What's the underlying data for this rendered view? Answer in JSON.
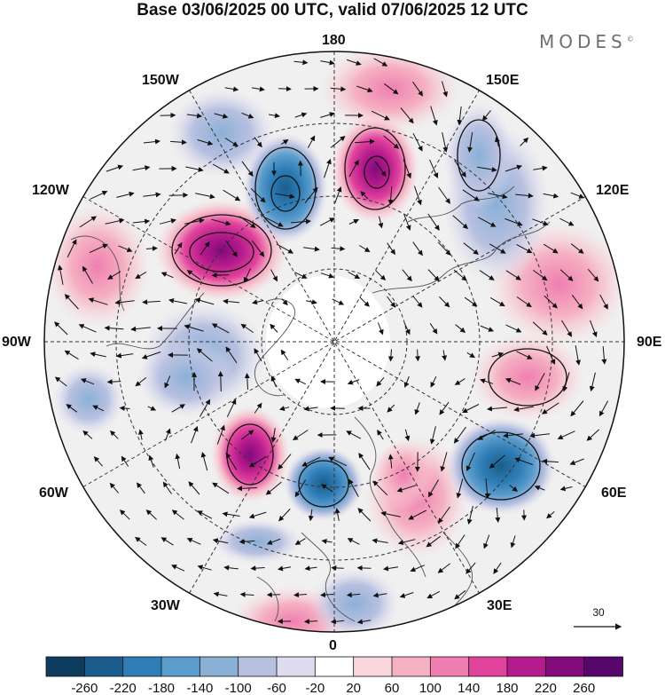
{
  "title": "Base 03/06/2025 00 UTC, valid 07/06/2025 12 UTC",
  "brand": {
    "name": "MODES",
    "mark": "©"
  },
  "longitude_labels": {
    "top": "180",
    "bottom": "0",
    "left": "90W",
    "right": "90E",
    "upper_left_1": "150W",
    "upper_left_2": "120W",
    "upper_right_1": "150E",
    "upper_right_2": "120E",
    "lower_left_1": "60W",
    "lower_left_2": "30W",
    "lower_right_1": "60E",
    "lower_right_2": "30E"
  },
  "reference_vector": {
    "label": "30"
  },
  "colorbar": {
    "ticks": [
      "-260",
      "-220",
      "-180",
      "-140",
      "-100",
      "-60",
      "-20",
      "20",
      "60",
      "100",
      "140",
      "180",
      "220",
      "260"
    ],
    "colors": [
      "#0e3c5e",
      "#1a5d8c",
      "#2f7db6",
      "#5a9ccc",
      "#8ab0d6",
      "#b8c0e0",
      "#ddddef",
      "#ffffff",
      "#fad7dc",
      "#f5b0c2",
      "#ef7fb0",
      "#e0429c",
      "#b51b8c",
      "#820a7b",
      "#57066b"
    ]
  },
  "anomaly_centers": [
    {
      "sign": "positive",
      "strength": 260
    },
    {
      "sign": "negative",
      "strength": -220
    },
    {
      "sign": "positive",
      "strength": 260
    },
    {
      "sign": "negative",
      "strength": -180
    },
    {
      "sign": "positive",
      "strength": 140
    },
    {
      "sign": "negative",
      "strength": -180
    },
    {
      "sign": "negative",
      "strength": -180
    },
    {
      "sign": "positive",
      "strength": 220
    },
    {
      "sign": "negative",
      "strength": -140
    },
    {
      "sign": "positive",
      "strength": 100
    }
  ]
}
